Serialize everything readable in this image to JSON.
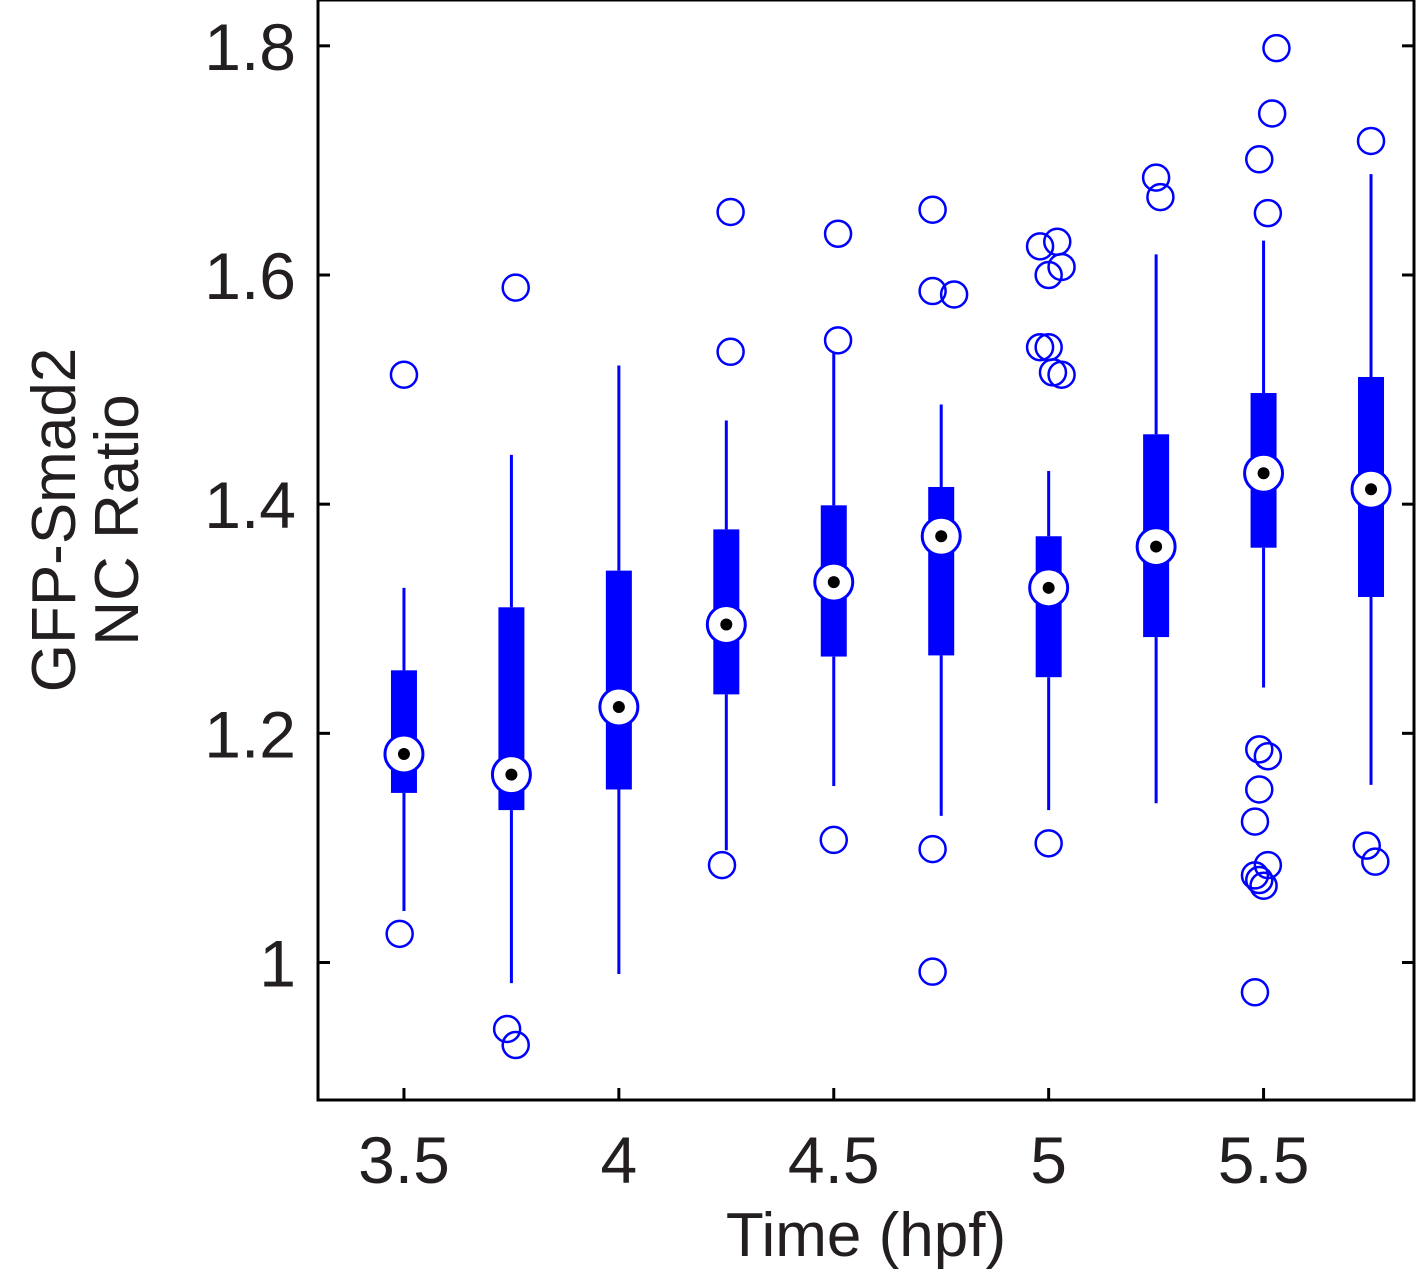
{
  "chart_data": {
    "type": "boxplot",
    "title": "",
    "xlabel": "Time (hpf)",
    "ylabel_lines": [
      "GFP-Smad2",
      "NC Ratio"
    ],
    "xlim": [
      3.3,
      5.85
    ],
    "ylim": [
      0.88,
      1.84
    ],
    "x_ticks": [
      3.5,
      4,
      4.5,
      5,
      5.5
    ],
    "x_tick_labels": [
      "3.5",
      "4",
      "4.5",
      "5",
      "5.5"
    ],
    "y_ticks": [
      1.0,
      1.2,
      1.4,
      1.6,
      1.8
    ],
    "y_tick_labels": [
      "1",
      "1.2",
      "1.4",
      "1.6",
      "1.8"
    ],
    "grid": false,
    "color": "#0000ff",
    "median_marker_color": "#000000",
    "boxes": [
      {
        "x": 3.5,
        "whisker_low": 1.045,
        "q1": 1.148,
        "median": 1.182,
        "q3": 1.255,
        "whisker_high": 1.327,
        "outliers": [
          [
            3.5,
            1.513
          ],
          [
            3.49,
            1.025
          ]
        ]
      },
      {
        "x": 3.75,
        "whisker_low": 0.982,
        "q1": 1.133,
        "median": 1.164,
        "q3": 1.31,
        "whisker_high": 1.443,
        "outliers": [
          [
            3.76,
            1.589
          ],
          [
            3.74,
            0.942
          ],
          [
            3.76,
            0.928
          ]
        ]
      },
      {
        "x": 4.0,
        "whisker_low": 0.99,
        "q1": 1.151,
        "median": 1.223,
        "q3": 1.342,
        "whisker_high": 1.521,
        "outliers": []
      },
      {
        "x": 4.25,
        "whisker_low": 1.098,
        "q1": 1.234,
        "median": 1.295,
        "q3": 1.378,
        "whisker_high": 1.473,
        "outliers": [
          [
            4.26,
            1.655
          ],
          [
            4.26,
            1.533
          ],
          [
            4.24,
            1.085
          ]
        ]
      },
      {
        "x": 4.5,
        "whisker_low": 1.154,
        "q1": 1.267,
        "median": 1.332,
        "q3": 1.399,
        "whisker_high": 1.532,
        "outliers": [
          [
            4.51,
            1.636
          ],
          [
            4.51,
            1.543
          ],
          [
            4.5,
            1.107
          ]
        ]
      },
      {
        "x": 4.75,
        "whisker_low": 1.128,
        "q1": 1.268,
        "median": 1.372,
        "q3": 1.415,
        "whisker_high": 1.487,
        "outliers": [
          [
            4.73,
            1.657
          ],
          [
            4.73,
            1.586
          ],
          [
            4.78,
            1.583
          ],
          [
            4.73,
            1.099
          ],
          [
            4.73,
            0.992
          ]
        ]
      },
      {
        "x": 5.0,
        "whisker_low": 1.133,
        "q1": 1.249,
        "median": 1.327,
        "q3": 1.372,
        "whisker_high": 1.429,
        "outliers": [
          [
            4.98,
            1.625
          ],
          [
            5.02,
            1.629
          ],
          [
            5.0,
            1.6
          ],
          [
            5.03,
            1.607
          ],
          [
            4.98,
            1.537
          ],
          [
            5.0,
            1.537
          ],
          [
            5.01,
            1.515
          ],
          [
            5.03,
            1.513
          ],
          [
            5.0,
            1.104
          ]
        ]
      },
      {
        "x": 5.25,
        "whisker_low": 1.139,
        "q1": 1.284,
        "median": 1.363,
        "q3": 1.461,
        "whisker_high": 1.618,
        "outliers": [
          [
            5.25,
            1.685
          ],
          [
            5.26,
            1.668
          ]
        ]
      },
      {
        "x": 5.5,
        "whisker_low": 1.24,
        "q1": 1.362,
        "median": 1.427,
        "q3": 1.497,
        "whisker_high": 1.63,
        "outliers": [
          [
            5.53,
            1.798
          ],
          [
            5.52,
            1.741
          ],
          [
            5.49,
            1.701
          ],
          [
            5.51,
            1.654
          ],
          [
            5.49,
            1.186
          ],
          [
            5.51,
            1.18
          ],
          [
            5.49,
            1.151
          ],
          [
            5.48,
            1.123
          ],
          [
            5.51,
            1.085
          ],
          [
            5.48,
            1.076
          ],
          [
            5.49,
            1.072
          ],
          [
            5.5,
            1.067
          ],
          [
            5.48,
            0.974
          ]
        ]
      },
      {
        "x": 5.75,
        "whisker_low": 1.155,
        "q1": 1.319,
        "median": 1.413,
        "q3": 1.511,
        "whisker_high": 1.688,
        "outliers": [
          [
            5.75,
            1.717
          ],
          [
            5.74,
            1.102
          ],
          [
            5.76,
            1.088
          ]
        ]
      }
    ]
  }
}
